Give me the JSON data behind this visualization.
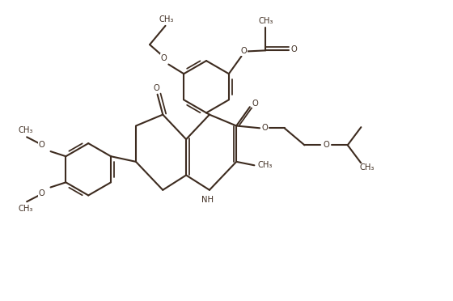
{
  "bg_color": "#ffffff",
  "line_color": "#3d2b1f",
  "line_width": 1.5,
  "figsize": [
    5.6,
    3.72
  ],
  "dpi": 100,
  "xlim": [
    0,
    10
  ],
  "ylim": [
    0,
    6.6
  ]
}
